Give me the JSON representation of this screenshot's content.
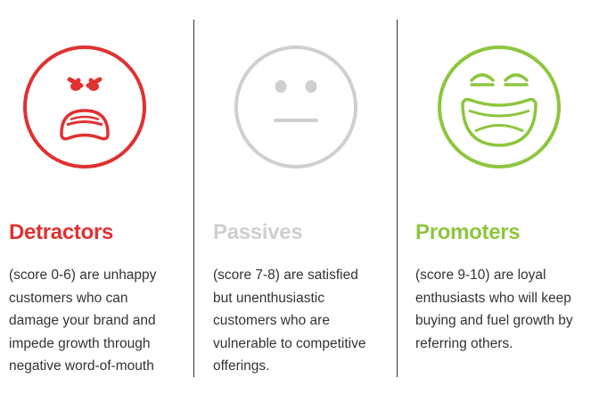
{
  "colors": {
    "detractors": "#e03131",
    "passives": "#cfcfcf",
    "promoters": "#8dc63f",
    "text": "#333333",
    "divider": "#333333"
  },
  "columns": [
    {
      "icon": "angry-face-icon",
      "heading": "Detractors",
      "lines": [
        "(score 0-6) are unhappy",
        "customers who can",
        "damage your brand and",
        "impede growth through",
        "negative word-of-mouth"
      ]
    },
    {
      "icon": "neutral-face-icon",
      "heading": "Passives",
      "lines": [
        "(score 7-8) are satisfied",
        "but unenthusiastic",
        "customers who are",
        "vulnerable to competitive",
        "offerings."
      ]
    },
    {
      "icon": "laughing-face-icon",
      "heading": "Promoters",
      "lines": [
        "(score 9-10) are loyal",
        "enthusiasts who will keep",
        "buying and fuel growth by",
        "referring others."
      ]
    }
  ]
}
